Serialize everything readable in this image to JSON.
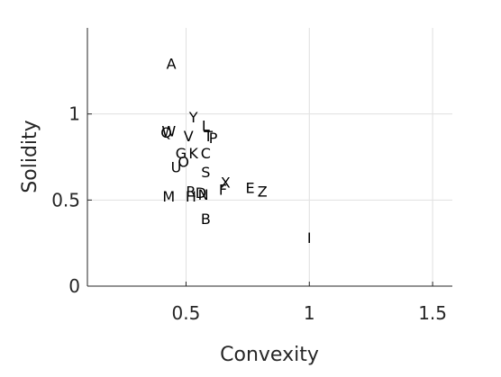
{
  "chart_data": {
    "type": "scatter",
    "title": "",
    "xlabel": "Convexity",
    "ylabel": "Solidity",
    "xlim": [
      0.1,
      1.58
    ],
    "ylim": [
      0,
      1.5
    ],
    "xticks": [
      0.5,
      1,
      1.5
    ],
    "xtick_labels": [
      "0.5",
      "1",
      "1.5"
    ],
    "yticks": [
      0,
      0.5,
      1
    ],
    "ytick_labels": [
      "0",
      "0.5",
      "1"
    ],
    "grid": true,
    "marker_style": "letter-labels",
    "points": [
      {
        "label": "A",
        "x": 0.44,
        "y": 1.29
      },
      {
        "label": "Y",
        "x": 0.53,
        "y": 0.98
      },
      {
        "label": "L",
        "x": 0.58,
        "y": 0.93
      },
      {
        "label": "W",
        "x": 0.43,
        "y": 0.9
      },
      {
        "label": "Q",
        "x": 0.42,
        "y": 0.89
      },
      {
        "label": "V",
        "x": 0.51,
        "y": 0.87
      },
      {
        "label": "T",
        "x": 0.59,
        "y": 0.87
      },
      {
        "label": "P",
        "x": 0.61,
        "y": 0.86
      },
      {
        "label": "G",
        "x": 0.48,
        "y": 0.77
      },
      {
        "label": "K",
        "x": 0.53,
        "y": 0.77
      },
      {
        "label": "C",
        "x": 0.58,
        "y": 0.77
      },
      {
        "label": "O",
        "x": 0.49,
        "y": 0.72
      },
      {
        "label": "U",
        "x": 0.46,
        "y": 0.69
      },
      {
        "label": "S",
        "x": 0.58,
        "y": 0.66
      },
      {
        "label": "X",
        "x": 0.66,
        "y": 0.6
      },
      {
        "label": "E",
        "x": 0.76,
        "y": 0.57
      },
      {
        "label": "F",
        "x": 0.65,
        "y": 0.56
      },
      {
        "label": "Z",
        "x": 0.81,
        "y": 0.55
      },
      {
        "label": "R",
        "x": 0.52,
        "y": 0.55
      },
      {
        "label": "D",
        "x": 0.56,
        "y": 0.54
      },
      {
        "label": "N",
        "x": 0.57,
        "y": 0.53
      },
      {
        "label": "M",
        "x": 0.43,
        "y": 0.52
      },
      {
        "label": "H",
        "x": 0.52,
        "y": 0.52
      },
      {
        "label": "B",
        "x": 0.58,
        "y": 0.39
      },
      {
        "label": "I",
        "x": 1.0,
        "y": 0.28
      }
    ]
  },
  "colors": {
    "axis": "#262626",
    "grid": "#e0e0e0",
    "point_label": "#000000"
  }
}
